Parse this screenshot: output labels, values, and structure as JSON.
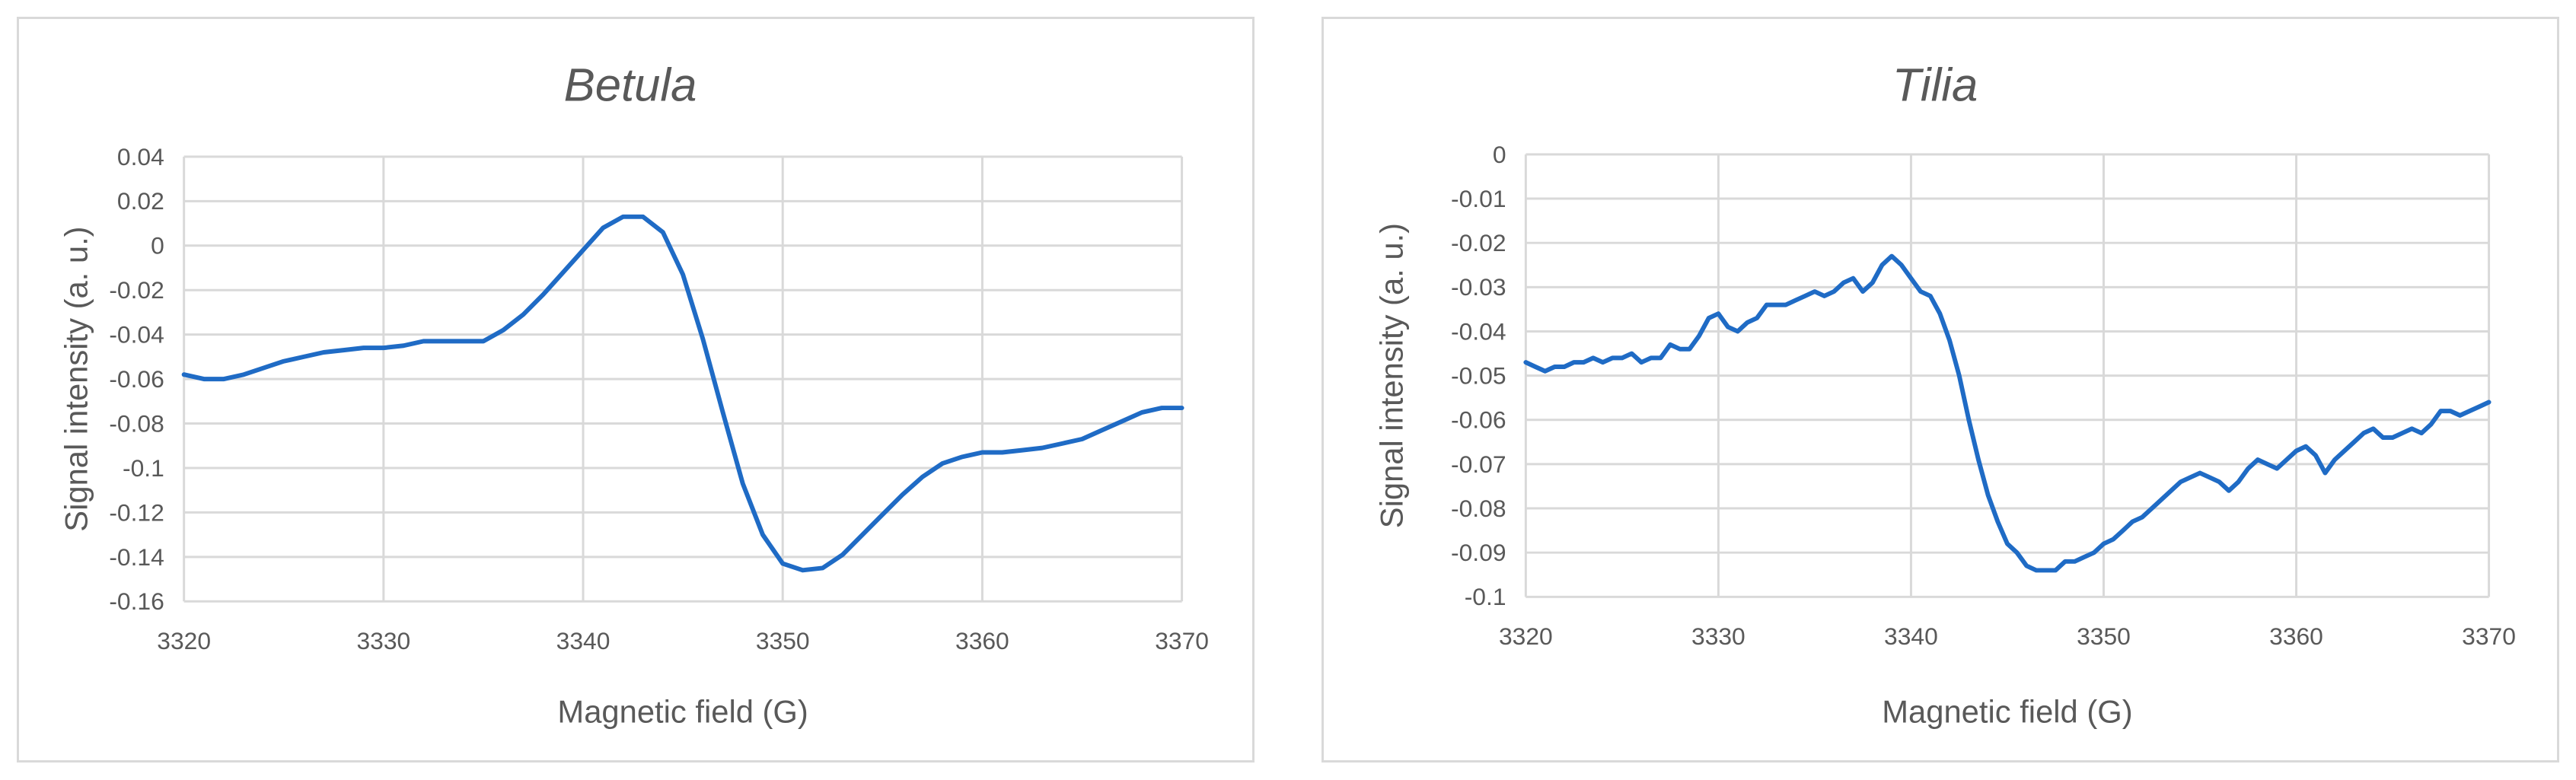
{
  "chart_data": [
    {
      "type": "line",
      "title": "Betula",
      "xlabel": "Magnetic field (G)",
      "ylabel": "Signal intensity (a. u.)",
      "xlim": [
        3320,
        3370
      ],
      "ylim": [
        -0.16,
        0.04
      ],
      "x_ticks": [
        3320,
        3330,
        3340,
        3350,
        3360,
        3370
      ],
      "x_tick_labels": [
        "3320",
        "3330",
        "3340",
        "3350",
        "3360",
        "3370"
      ],
      "y_ticks": [
        0.04,
        0.02,
        0,
        -0.02,
        -0.04,
        -0.06,
        -0.08,
        -0.1,
        -0.12,
        -0.14,
        -0.16
      ],
      "y_tick_labels": [
        "0.04",
        "0.02",
        "0",
        "-0.02",
        "-0.04",
        "-0.06",
        "-0.08",
        "-0.1",
        "-0.12",
        "-0.14",
        "-0.16"
      ],
      "grid": true,
      "legend": "none",
      "color": "#1f6bc5",
      "x": [
        3320,
        3321,
        3322,
        3323,
        3324,
        3325,
        3326,
        3327,
        3328,
        3329,
        3330,
        3331,
        3332,
        3333,
        3334,
        3335,
        3336,
        3337,
        3338,
        3339,
        3340,
        3341,
        3342,
        3343,
        3344,
        3345,
        3346,
        3347,
        3348,
        3349,
        3350,
        3351,
        3352,
        3353,
        3354,
        3355,
        3356,
        3357,
        3358,
        3359,
        3360,
        3361,
        3362,
        3363,
        3364,
        3365,
        3366,
        3367,
        3368,
        3369,
        3370
      ],
      "y": [
        -0.058,
        -0.06,
        -0.06,
        -0.058,
        -0.055,
        -0.052,
        -0.05,
        -0.048,
        -0.047,
        -0.046,
        -0.046,
        -0.045,
        -0.043,
        -0.043,
        -0.043,
        -0.043,
        -0.038,
        -0.031,
        -0.022,
        -0.012,
        -0.002,
        0.008,
        0.013,
        0.013,
        0.006,
        -0.013,
        -0.042,
        -0.075,
        -0.107,
        -0.13,
        -0.143,
        -0.146,
        -0.145,
        -0.139,
        -0.13,
        -0.121,
        -0.112,
        -0.104,
        -0.098,
        -0.095,
        -0.093,
        -0.093,
        -0.092,
        -0.091,
        -0.089,
        -0.087,
        -0.083,
        -0.079,
        -0.075,
        -0.073,
        -0.073
      ]
    },
    {
      "type": "line",
      "title": "Tilia",
      "xlabel": "Magnetic field (G)",
      "ylabel": "Signal intensity (a. u.)",
      "xlim": [
        3320,
        3370
      ],
      "ylim": [
        -0.1,
        0
      ],
      "x_ticks": [
        3320,
        3330,
        3340,
        3350,
        3360,
        3370
      ],
      "x_tick_labels": [
        "3320",
        "3330",
        "3340",
        "3350",
        "3360",
        "3370"
      ],
      "y_ticks": [
        0,
        -0.01,
        -0.02,
        -0.03,
        -0.04,
        -0.05,
        -0.06,
        -0.07,
        -0.08,
        -0.09,
        -0.1
      ],
      "y_tick_labels": [
        "0",
        "-0.01",
        "-0.02",
        "-0.03",
        "-0.04",
        "-0.05",
        "-0.06",
        "-0.07",
        "-0.08",
        "-0.09",
        "-0.1"
      ],
      "grid": true,
      "legend": "none",
      "color": "#1f6bc5",
      "x": [
        3320,
        3320.5,
        3321,
        3321.5,
        3322,
        3322.5,
        3323,
        3323.5,
        3324,
        3324.5,
        3325,
        3325.5,
        3326,
        3326.5,
        3327,
        3327.5,
        3328,
        3328.5,
        3329,
        3329.5,
        3330,
        3330.5,
        3331,
        3331.5,
        3332,
        3332.5,
        3333,
        3333.5,
        3334,
        3334.5,
        3335,
        3335.5,
        3336,
        3336.5,
        3337,
        3337.5,
        3338,
        3338.5,
        3339,
        3339.5,
        3340,
        3340.5,
        3341,
        3341.5,
        3342,
        3342.5,
        3343,
        3343.5,
        3344,
        3344.5,
        3345,
        3345.5,
        3346,
        3346.5,
        3347,
        3347.5,
        3348,
        3348.5,
        3349,
        3349.5,
        3350,
        3350.5,
        3351,
        3351.5,
        3352,
        3352.5,
        3353,
        3353.5,
        3354,
        3354.5,
        3355,
        3355.5,
        3356,
        3356.5,
        3357,
        3357.5,
        3358,
        3358.5,
        3359,
        3359.5,
        3360,
        3360.5,
        3361,
        3361.5,
        3362,
        3362.5,
        3363,
        3363.5,
        3364,
        3364.5,
        3365,
        3365.5,
        3366,
        3366.5,
        3367,
        3367.5,
        3368,
        3368.5,
        3369,
        3369.5,
        3370
      ],
      "y": [
        -0.047,
        -0.048,
        -0.049,
        -0.048,
        -0.048,
        -0.047,
        -0.047,
        -0.046,
        -0.047,
        -0.046,
        -0.046,
        -0.045,
        -0.047,
        -0.046,
        -0.046,
        -0.043,
        -0.044,
        -0.044,
        -0.041,
        -0.037,
        -0.036,
        -0.039,
        -0.04,
        -0.038,
        -0.037,
        -0.034,
        -0.034,
        -0.034,
        -0.033,
        -0.032,
        -0.031,
        -0.032,
        -0.031,
        -0.029,
        -0.028,
        -0.031,
        -0.029,
        -0.025,
        -0.023,
        -0.025,
        -0.028,
        -0.031,
        -0.032,
        -0.036,
        -0.042,
        -0.05,
        -0.06,
        -0.069,
        -0.077,
        -0.083,
        -0.088,
        -0.09,
        -0.093,
        -0.094,
        -0.094,
        -0.094,
        -0.092,
        -0.092,
        -0.091,
        -0.09,
        -0.088,
        -0.087,
        -0.085,
        -0.083,
        -0.082,
        -0.08,
        -0.078,
        -0.076,
        -0.074,
        -0.073,
        -0.072,
        -0.073,
        -0.074,
        -0.076,
        -0.074,
        -0.071,
        -0.069,
        -0.07,
        -0.071,
        -0.069,
        -0.067,
        -0.066,
        -0.068,
        -0.072,
        -0.069,
        -0.067,
        -0.065,
        -0.063,
        -0.062,
        -0.064,
        -0.064,
        -0.063,
        -0.062,
        -0.063,
        -0.061,
        -0.058,
        -0.058,
        -0.059,
        -0.058,
        -0.057,
        -0.056
      ]
    }
  ]
}
